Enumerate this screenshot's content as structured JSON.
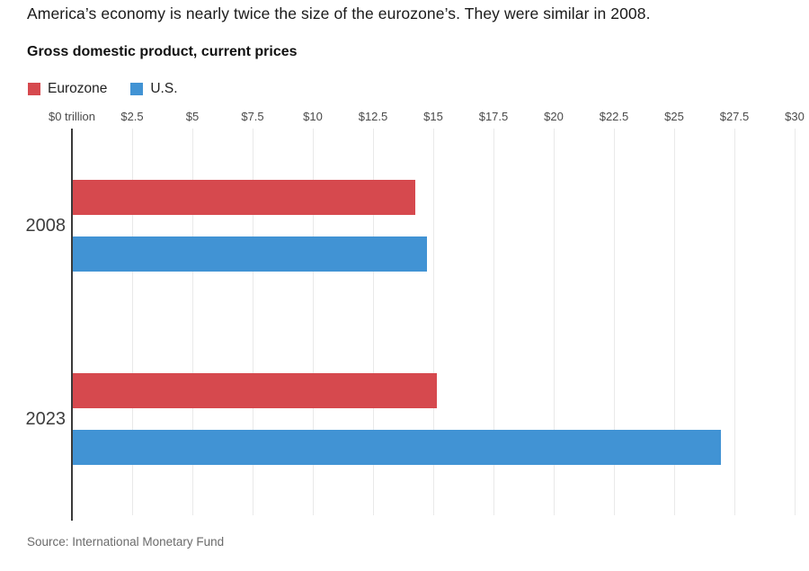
{
  "header": {
    "title": "America’s economy is nearly twice the size of the eurozone’s. They were similar in 2008.",
    "subtitle": "Gross domestic product, current prices"
  },
  "legend": [
    {
      "label": "Eurozone",
      "color": "#d6494e"
    },
    {
      "label": "U.S.",
      "color": "#4193d4"
    }
  ],
  "chart_data": {
    "type": "bar",
    "orientation": "horizontal",
    "title": "Gross domestic product, current prices",
    "unit": "USD trillions",
    "categories": [
      "2008",
      "2023"
    ],
    "series": [
      {
        "name": "Eurozone",
        "color": "#d6494e",
        "values": [
          14.2,
          15.1
        ]
      },
      {
        "name": "U.S.",
        "color": "#4193d4",
        "values": [
          14.7,
          26.9
        ]
      }
    ],
    "x_axis": {
      "min": 0,
      "max": 30,
      "tick_values": [
        0,
        2.5,
        5,
        7.5,
        10,
        12.5,
        15,
        17.5,
        20,
        22.5,
        25,
        27.5,
        30
      ],
      "tick_labels": [
        "$0 trillion",
        "$2.5",
        "$5",
        "$7.5",
        "$10",
        "$12.5",
        "$15",
        "$17.5",
        "$20",
        "$22.5",
        "$25",
        "$27.5",
        "$30"
      ]
    },
    "grid": true,
    "legend_position": "top-left"
  },
  "source": "Source: International Monetary Fund"
}
